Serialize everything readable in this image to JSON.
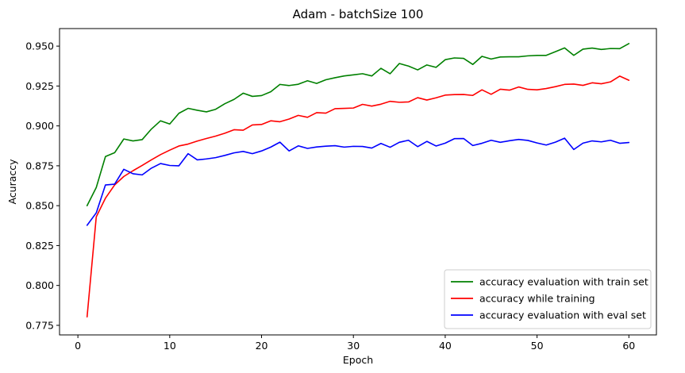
{
  "chart_data": {
    "type": "line",
    "title": "Adam - batchSize 100",
    "xlabel": "Epoch",
    "ylabel": "Acuraccy",
    "xlim": [
      -2,
      63
    ],
    "ylim": [
      0.769,
      0.961
    ],
    "xticks": [
      0,
      10,
      20,
      30,
      40,
      50,
      60
    ],
    "yticks": [
      0.775,
      0.8,
      0.825,
      0.85,
      0.875,
      0.9,
      0.925,
      0.95
    ],
    "ytick_labels": [
      "0.775",
      "0.800",
      "0.825",
      "0.850",
      "0.875",
      "0.900",
      "0.925",
      "0.950"
    ],
    "grid": false,
    "legend_position": "lower-right",
    "x": [
      1,
      2,
      3,
      4,
      5,
      6,
      7,
      8,
      9,
      10,
      11,
      12,
      13,
      14,
      15,
      16,
      17,
      18,
      19,
      20,
      21,
      22,
      23,
      24,
      25,
      26,
      27,
      28,
      29,
      30,
      31,
      32,
      33,
      34,
      35,
      36,
      37,
      38,
      39,
      40,
      41,
      42,
      43,
      44,
      45,
      46,
      47,
      48,
      49,
      50,
      51,
      52,
      53,
      54,
      55,
      56,
      57,
      58,
      59,
      60
    ],
    "series": [
      {
        "name": "accuracy evaluation with train set",
        "color": "#008000",
        "values": [
          0.85,
          0.8614,
          0.8808,
          0.8832,
          0.8918,
          0.8906,
          0.8914,
          0.898,
          0.9032,
          0.9012,
          0.9079,
          0.911,
          0.9098,
          0.9088,
          0.9104,
          0.9139,
          0.9166,
          0.9205,
          0.9185,
          0.919,
          0.9214,
          0.926,
          0.9253,
          0.9261,
          0.9283,
          0.9266,
          0.9289,
          0.9302,
          0.9313,
          0.932,
          0.9327,
          0.9313,
          0.9361,
          0.9327,
          0.9391,
          0.9375,
          0.9351,
          0.9382,
          0.9367,
          0.9415,
          0.9426,
          0.9423,
          0.9385,
          0.9436,
          0.9419,
          0.9432,
          0.9433,
          0.9433,
          0.9439,
          0.9442,
          0.9442,
          0.9465,
          0.9489,
          0.9442,
          0.9481,
          0.9488,
          0.9479,
          0.9485,
          0.9484,
          0.9516
        ]
      },
      {
        "name": "accuracy while training",
        "color": "#ff0000",
        "values": [
          0.7803,
          0.843,
          0.8547,
          0.863,
          0.8683,
          0.8719,
          0.8752,
          0.8787,
          0.882,
          0.8848,
          0.8874,
          0.8886,
          0.8905,
          0.8921,
          0.8936,
          0.8954,
          0.8976,
          0.8973,
          0.9006,
          0.9009,
          0.9032,
          0.9026,
          0.9043,
          0.9066,
          0.9054,
          0.9083,
          0.908,
          0.9108,
          0.911,
          0.9112,
          0.9135,
          0.9124,
          0.9136,
          0.9154,
          0.9148,
          0.915,
          0.9177,
          0.9162,
          0.9176,
          0.9193,
          0.9196,
          0.9197,
          0.9191,
          0.9226,
          0.9198,
          0.923,
          0.9224,
          0.9244,
          0.9229,
          0.9226,
          0.9234,
          0.9246,
          0.926,
          0.9262,
          0.9254,
          0.927,
          0.9264,
          0.9276,
          0.9312,
          0.9286
        ]
      },
      {
        "name": "accuracy evaluation with eval set",
        "color": "#0000ff",
        "values": [
          0.8377,
          0.8455,
          0.863,
          0.8635,
          0.8728,
          0.87,
          0.8693,
          0.8735,
          0.8764,
          0.8752,
          0.875,
          0.8826,
          0.8787,
          0.8793,
          0.8801,
          0.8815,
          0.8831,
          0.884,
          0.8826,
          0.8843,
          0.8867,
          0.8898,
          0.8843,
          0.8875,
          0.8859,
          0.8868,
          0.8873,
          0.8876,
          0.8867,
          0.8872,
          0.8871,
          0.8861,
          0.889,
          0.8866,
          0.8897,
          0.891,
          0.887,
          0.8903,
          0.8874,
          0.8892,
          0.892,
          0.8921,
          0.8877,
          0.8891,
          0.891,
          0.8897,
          0.8907,
          0.8915,
          0.8909,
          0.8893,
          0.888,
          0.8898,
          0.8923,
          0.8852,
          0.8892,
          0.8906,
          0.89,
          0.891,
          0.8891,
          0.8896
        ]
      }
    ]
  }
}
